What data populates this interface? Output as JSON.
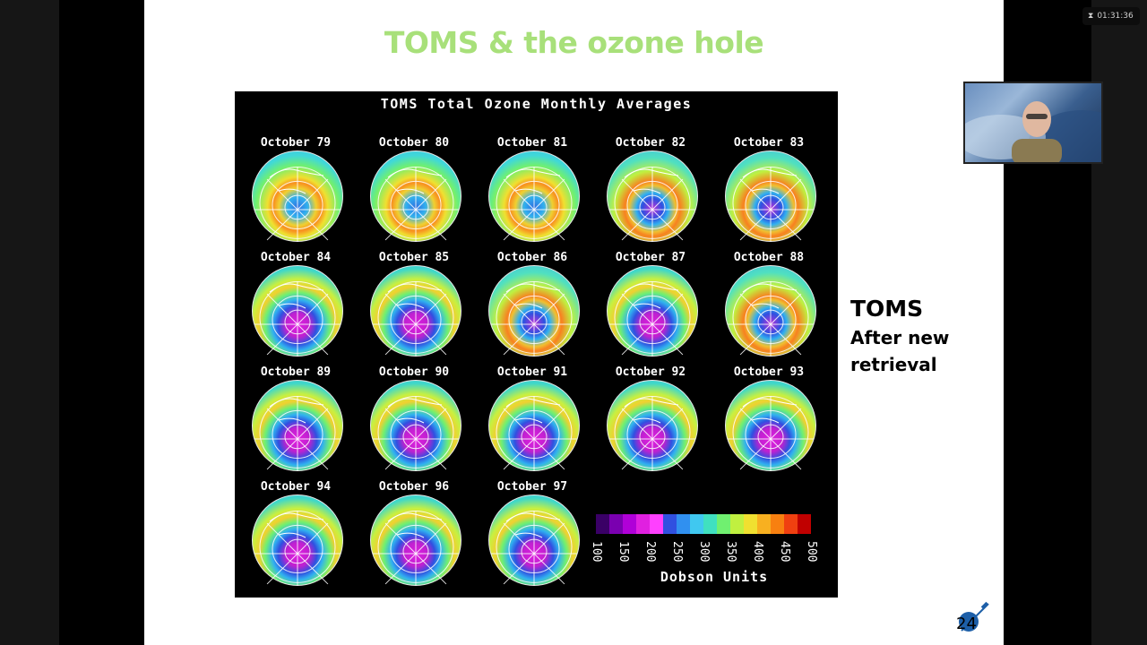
{
  "slide": {
    "title": "TOMS & the ozone hole",
    "side_title": "TOMS",
    "side_subtitle_line1": "After new",
    "side_subtitle_line2": "retrieval",
    "page_number": "24"
  },
  "figure": {
    "title": "TOMS Total Ozone Monthly Averages",
    "panels": [
      {
        "label": "October 79",
        "hole": "weak"
      },
      {
        "label": "October 80",
        "hole": "weak"
      },
      {
        "label": "October 81",
        "hole": "weak"
      },
      {
        "label": "October 82",
        "hole": "moderate"
      },
      {
        "label": "October 83",
        "hole": "moderate"
      },
      {
        "label": "October 84",
        "hole": "strong"
      },
      {
        "label": "October 85",
        "hole": "strong"
      },
      {
        "label": "October 86",
        "hole": "moderate"
      },
      {
        "label": "October 87",
        "hole": "strong"
      },
      {
        "label": "October 88",
        "hole": "moderate"
      },
      {
        "label": "October 89",
        "hole": "strong"
      },
      {
        "label": "October 90",
        "hole": "strong"
      },
      {
        "label": "October 91",
        "hole": "strong"
      },
      {
        "label": "October 92",
        "hole": "strong"
      },
      {
        "label": "October 93",
        "hole": "strong"
      },
      {
        "label": "October 94",
        "hole": "strong"
      },
      {
        "label": "October 96",
        "hole": "strong"
      },
      {
        "label": "October 97",
        "hole": "strong"
      }
    ],
    "color_scale": {
      "unit": "Dobson Units",
      "ticks": [
        "100",
        "150",
        "200",
        "250",
        "300",
        "350",
        "400",
        "450",
        "500"
      ],
      "colors": [
        "#3a0066",
        "#7a00b0",
        "#b000d8",
        "#e020e0",
        "#ff40ff",
        "#3050e0",
        "#3090f0",
        "#40c8f0",
        "#40e0c0",
        "#70f070",
        "#c0f040",
        "#f0e030",
        "#f8b020",
        "#f88010",
        "#f04010",
        "#c00000"
      ]
    }
  },
  "overlay": {
    "timer": "01:31:36",
    "timer_icon": "hourglass-icon"
  }
}
